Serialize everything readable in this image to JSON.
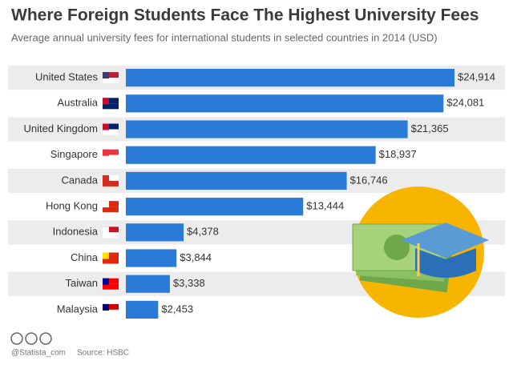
{
  "chart_data": {
    "type": "bar",
    "orientation": "horizontal",
    "title": "Where Foreign Students Face The Highest University Fees",
    "subtitle": "Average annual university fees for international students in selected countries in 2014 (USD)",
    "categories": [
      "United States",
      "Australia",
      "United Kingdom",
      "Singapore",
      "Canada",
      "Hong Kong",
      "Indonesia",
      "China",
      "Taiwan",
      "Malaysia"
    ],
    "values": [
      24914,
      24081,
      21365,
      18937,
      16746,
      13444,
      4378,
      3844,
      3338,
      2453
    ],
    "value_labels": [
      "$24,914",
      "$24,081",
      "$21,365",
      "$18,937",
      "$16,746",
      "$13,444",
      "$4,378",
      "$3,844",
      "$3,338",
      "$2,453"
    ],
    "color": "#2a7bd8",
    "source": "Source: HSBC",
    "credit": "@Statista_com"
  }
}
